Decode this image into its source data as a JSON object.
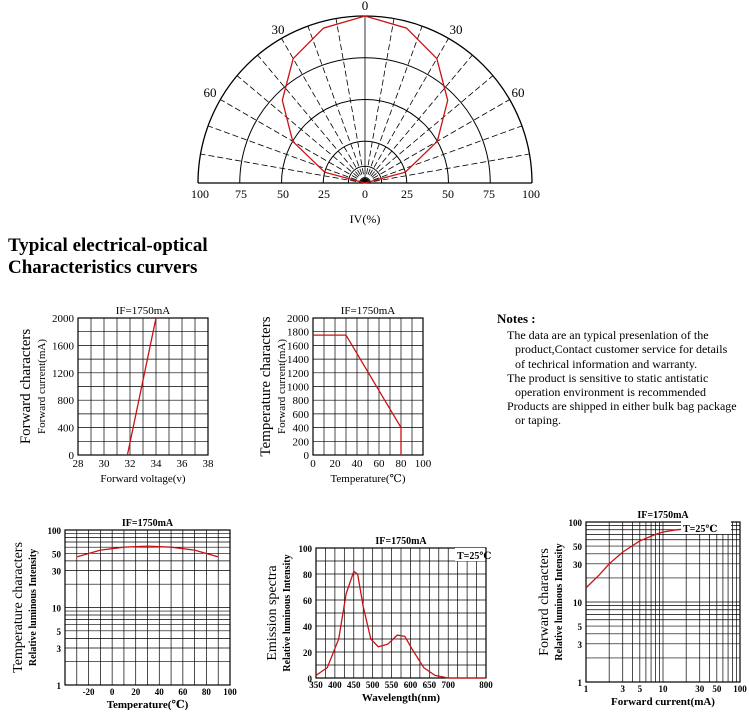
{
  "headings": {
    "line1": "Typical electrical-optical",
    "line2": "Characteristics curvers"
  },
  "notes": {
    "title": "Notes :",
    "items": [
      "The data are an typical presenlation of the product,Contact customer service for details of techrical information and warranty.",
      "The product is sensitive to static antistatic operation environment is recommended",
      "Products are shipped in either bulk bag package or taping."
    ]
  },
  "chart_data": [
    {
      "id": "radiation",
      "type": "line",
      "polar": true,
      "xlabel": "IV(%)",
      "angle_labels": [
        "0",
        "30",
        "30",
        "60",
        "60"
      ],
      "radial_ticks": [
        "100",
        "75",
        "50",
        "25",
        "0",
        "25",
        "50",
        "75",
        "100"
      ],
      "series": [
        {
          "color": "#cc1111",
          "points": [
            [
              -90,
              0
            ],
            [
              -75,
              25
            ],
            [
              -60,
              50
            ],
            [
              -45,
              70
            ],
            [
              -30,
              86
            ],
            [
              -15,
              96
            ],
            [
              0,
              100
            ],
            [
              15,
              96
            ],
            [
              30,
              86
            ],
            [
              45,
              70
            ],
            [
              60,
              50
            ],
            [
              75,
              25
            ],
            [
              90,
              0
            ]
          ]
        }
      ]
    },
    {
      "id": "forward",
      "type": "line",
      "title": "IF=1750mA",
      "ylabel1": "Forward characters",
      "ylabel2": "Forward current(mA)",
      "xlabel": "Forward voltage(v)",
      "xlim": [
        28,
        38
      ],
      "ylim": [
        0,
        2000
      ],
      "xticks": [
        "28",
        "30",
        "32",
        "34",
        "36",
        "38"
      ],
      "yticks": [
        "0",
        "400",
        "800",
        "1200",
        "1600",
        "2000"
      ],
      "series": [
        {
          "color": "#cc1111",
          "points": [
            [
              31.8,
              0
            ],
            [
              34.0,
              2000
            ]
          ]
        }
      ]
    },
    {
      "id": "temp_current",
      "type": "line",
      "title": "IF=1750mA",
      "ylabel1": "Temperature characters",
      "ylabel2": "Forward current(mA)",
      "xlabel": "Temperature(℃)",
      "xlim": [
        0,
        100
      ],
      "ylim": [
        0,
        2000
      ],
      "xticks": [
        "0",
        "20",
        "40",
        "60",
        "80",
        "100"
      ],
      "yticks": [
        "0",
        "200",
        "400",
        "600",
        "800",
        "1000",
        "1200",
        "1400",
        "1600",
        "1800",
        "2000"
      ],
      "series": [
        {
          "color": "#cc1111",
          "points": [
            [
              0,
              1750
            ],
            [
              30,
              1750
            ],
            [
              80,
              400
            ],
            [
              80,
              0
            ]
          ]
        }
      ]
    },
    {
      "id": "temp_intensity",
      "type": "line",
      "title": "IF=1750mA",
      "ylabel1": "Temperature characters",
      "ylabel2": "Relative luminous Intensity",
      "xlabel": "Temperature(℃)",
      "xlim": [
        -40,
        100
      ],
      "ylim": [
        1,
        100
      ],
      "yscale": "log",
      "xticks": [
        "-20",
        "0",
        "20",
        "40",
        "60",
        "80",
        "100"
      ],
      "yticks": [
        "1",
        "3",
        "5",
        "10",
        "30",
        "50",
        "100"
      ],
      "series": [
        {
          "color": "#cc1111",
          "points": [
            [
              -30,
              45
            ],
            [
              -10,
              55
            ],
            [
              10,
              60
            ],
            [
              30,
              62
            ],
            [
              50,
              60
            ],
            [
              70,
              55
            ],
            [
              90,
              45
            ]
          ]
        }
      ]
    },
    {
      "id": "spectra",
      "type": "line",
      "title": "IF=1750mA",
      "ylabel1": "Emission spectra",
      "ylabel2": "Relative luminous Intensity",
      "xlabel": "Wavelength(nm)",
      "annotation": "T=25℃",
      "xlim": [
        350,
        800
      ],
      "ylim": [
        0,
        100
      ],
      "xticks": [
        "350",
        "400",
        "450",
        "500",
        "550",
        "600",
        "650",
        "700",
        "800"
      ],
      "yticks": [
        "0",
        "20",
        "40",
        "60",
        "80",
        "100"
      ],
      "series": [
        {
          "color": "#cc1111",
          "points": [
            [
              350,
              2
            ],
            [
              380,
              8
            ],
            [
              410,
              30
            ],
            [
              430,
              65
            ],
            [
              450,
              82
            ],
            [
              460,
              80
            ],
            [
              475,
              55
            ],
            [
              495,
              30
            ],
            [
              515,
              24
            ],
            [
              540,
              26
            ],
            [
              565,
              33
            ],
            [
              585,
              32
            ],
            [
              605,
              22
            ],
            [
              635,
              8
            ],
            [
              665,
              2
            ],
            [
              700,
              0
            ],
            [
              800,
              0
            ]
          ]
        }
      ]
    },
    {
      "id": "current_intensity",
      "type": "line",
      "title": "IF=1750mA",
      "ylabel1": "Forward characters",
      "ylabel2": "Relative luminous Intensity",
      "xlabel": "Forward current(mA)",
      "annotation": "T=25℃",
      "xlim": [
        1,
        100
      ],
      "ylim": [
        1,
        100
      ],
      "xscale": "log",
      "yscale": "log",
      "xticks": [
        "1",
        "3",
        "5",
        "10",
        "30",
        "50",
        "100"
      ],
      "yticks": [
        "1",
        "3",
        "5",
        "10",
        "30",
        "50",
        "100"
      ],
      "series": [
        {
          "color": "#cc1111",
          "points": [
            [
              1,
              15
            ],
            [
              1.5,
              22
            ],
            [
              2,
              30
            ],
            [
              3,
              42
            ],
            [
              5,
              58
            ],
            [
              8,
              70
            ],
            [
              10,
              75
            ],
            [
              15,
              80
            ],
            [
              20,
              82
            ]
          ]
        }
      ]
    }
  ]
}
